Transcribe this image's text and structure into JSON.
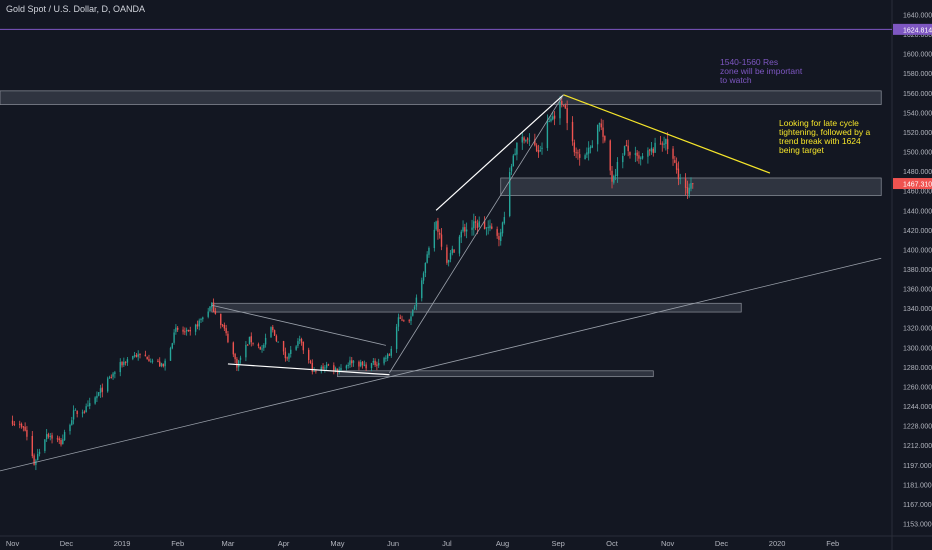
{
  "header": {
    "title": "Gold Spot / U.S. Dollar, D, OANDA"
  },
  "colors": {
    "background": "#131722",
    "up": "#26a69a",
    "down": "#ef5350",
    "zone_fill": "#3a3f4b",
    "zone_stroke": "#c8ccd6",
    "trendline_white": "#ffffff",
    "trendline_gray": "#9aa0aa",
    "trendline_yellow": "#f5e52a",
    "hline_purple": "#7e57c2",
    "axis_text": "#b2b5be",
    "annot_purple": "#7e57c2",
    "annot_yellow": "#f5e52a"
  },
  "annotations": {
    "resistance_note": "1540-1560 Res\nzone will be important\nto watch",
    "tightening_note": "Looking for late cycle\ntightening, followed by a\ntrend break with 1624\nbeing target"
  },
  "price_labels": {
    "hline": "1624.814",
    "last": "1467.310"
  },
  "chart_data": {
    "type": "candlestick",
    "title": "Gold Spot / U.S. Dollar, D, OANDA",
    "y_ticks": [
      1153.0,
      1167.0,
      1181.0,
      1197.0,
      1212.0,
      1228.0,
      1244.0,
      1260.0,
      1280.0,
      1300.0,
      1320.0,
      1340.0,
      1360.0,
      1380.0,
      1400.0,
      1420.0,
      1440.0,
      1460.0,
      1480.0,
      1500.0,
      1520.0,
      1540.0,
      1560.0,
      1580.0,
      1600.0,
      1620.0,
      1640.0
    ],
    "y_tick_labels": [
      "1153.000",
      "1167.000",
      "1181.000",
      "1197.000",
      "1212.000",
      "1228.000",
      "1244.000",
      "1260.000",
      "1280.000",
      "1300.000",
      "1320.000",
      "1340.000",
      "1360.000",
      "1380.000",
      "1400.000",
      "1420.000",
      "1440.000",
      "1460.000",
      "1480.000",
      "1500.000",
      "1520.000",
      "1540.000",
      "1560.000",
      "1580.000",
      "1600.000",
      "1620.000",
      "1640.000"
    ],
    "x_ticks": [
      {
        "label": "Nov",
        "date": "2018-11-01"
      },
      {
        "label": "Dec",
        "date": "2018-12-01"
      },
      {
        "label": "2019",
        "date": "2019-01-01"
      },
      {
        "label": "Feb",
        "date": "2019-02-01"
      },
      {
        "label": "Mar",
        "date": "2019-03-01"
      },
      {
        "label": "Apr",
        "date": "2019-04-01"
      },
      {
        "label": "May",
        "date": "2019-05-01"
      },
      {
        "label": "Jun",
        "date": "2019-06-01"
      },
      {
        "label": "Jul",
        "date": "2019-07-01"
      },
      {
        "label": "Aug",
        "date": "2019-08-01"
      },
      {
        "label": "Sep",
        "date": "2019-09-01"
      },
      {
        "label": "Oct",
        "date": "2019-10-01"
      },
      {
        "label": "Nov",
        "date": "2019-11-01"
      },
      {
        "label": "Dec",
        "date": "2019-12-01"
      },
      {
        "label": "2020",
        "date": "2020-01-01"
      },
      {
        "label": "Feb",
        "date": "2020-02-01"
      }
    ],
    "price_path": [
      [
        "2018-11-01",
        1232
      ],
      [
        "2018-11-08",
        1224
      ],
      [
        "2018-11-13",
        1198
      ],
      [
        "2018-11-20",
        1222
      ],
      [
        "2018-11-28",
        1214
      ],
      [
        "2018-12-05",
        1238
      ],
      [
        "2018-12-13",
        1242
      ],
      [
        "2018-12-20",
        1256
      ],
      [
        "2018-12-31",
        1282
      ],
      [
        "2019-01-07",
        1292
      ],
      [
        "2019-01-15",
        1290
      ],
      [
        "2019-01-24",
        1280
      ],
      [
        "2019-01-31",
        1318
      ],
      [
        "2019-02-08",
        1314
      ],
      [
        "2019-02-20",
        1343
      ],
      [
        "2019-02-27",
        1318
      ],
      [
        "2019-03-06",
        1282
      ],
      [
        "2019-03-13",
        1308
      ],
      [
        "2019-03-20",
        1298
      ],
      [
        "2019-03-25",
        1320
      ],
      [
        "2019-04-02",
        1290
      ],
      [
        "2019-04-10",
        1306
      ],
      [
        "2019-04-18",
        1274
      ],
      [
        "2019-04-25",
        1282
      ],
      [
        "2019-05-01",
        1277
      ],
      [
        "2019-05-09",
        1286
      ],
      [
        "2019-05-16",
        1281
      ],
      [
        "2019-05-23",
        1284
      ],
      [
        "2019-05-30",
        1292
      ],
      [
        "2019-06-04",
        1328
      ],
      [
        "2019-06-11",
        1330
      ],
      [
        "2019-06-20",
        1392
      ],
      [
        "2019-06-25",
        1428
      ],
      [
        "2019-07-01",
        1388
      ],
      [
        "2019-07-10",
        1420
      ],
      [
        "2019-07-19",
        1426
      ],
      [
        "2019-07-31",
        1414
      ],
      [
        "2019-08-07",
        1498
      ],
      [
        "2019-08-13",
        1516
      ],
      [
        "2019-08-22",
        1498
      ],
      [
        "2019-08-26",
        1528
      ],
      [
        "2019-09-04",
        1552
      ],
      [
        "2019-09-10",
        1498
      ],
      [
        "2019-09-18",
        1500
      ],
      [
        "2019-09-24",
        1532
      ],
      [
        "2019-10-01",
        1472
      ],
      [
        "2019-10-08",
        1504
      ],
      [
        "2019-10-16",
        1490
      ],
      [
        "2019-10-24",
        1502
      ],
      [
        "2019-10-30",
        1512
      ],
      [
        "2019-11-05",
        1486
      ],
      [
        "2019-11-12",
        1455
      ],
      [
        "2019-11-15",
        1467
      ]
    ],
    "last_price": 1467.31,
    "zones": [
      {
        "from": "2018-10-25",
        "to": "2020-02-28",
        "low": 1548,
        "high": 1562
      },
      {
        "from": "2019-07-31",
        "to": "2020-02-28",
        "low": 1455,
        "high": 1473
      },
      {
        "from": "2019-02-20",
        "to": "2019-12-12",
        "low": 1336,
        "high": 1345
      },
      {
        "from": "2019-05-01",
        "to": "2019-10-24",
        "low": 1270,
        "high": 1276
      }
    ],
    "lines": [
      {
        "kind": "white",
        "from": [
          "2019-03-01",
          1283
        ],
        "to": [
          "2019-05-30",
          1272
        ]
      },
      {
        "kind": "gray",
        "from": [
          "2019-02-20",
          1343
        ],
        "to": [
          "2019-05-28",
          1302
        ]
      },
      {
        "kind": "white",
        "from": [
          "2019-06-25",
          1440
        ],
        "to": [
          "2019-09-04",
          1558
        ]
      },
      {
        "kind": "gray",
        "from": [
          "2019-05-30",
          1274
        ],
        "to": [
          "2019-09-04",
          1558
        ]
      },
      {
        "kind": "gray",
        "from": [
          "2018-10-25",
          1192
        ],
        "to": [
          "2020-02-28",
          1391
        ]
      },
      {
        "kind": "yellow",
        "from": [
          "2019-09-04",
          1558
        ],
        "to": [
          "2019-12-28",
          1478
        ]
      }
    ],
    "hline": 1624.814,
    "x_range": [
      "2018-10-25",
      "2020-03-05"
    ],
    "grid": false,
    "legend": "none"
  }
}
